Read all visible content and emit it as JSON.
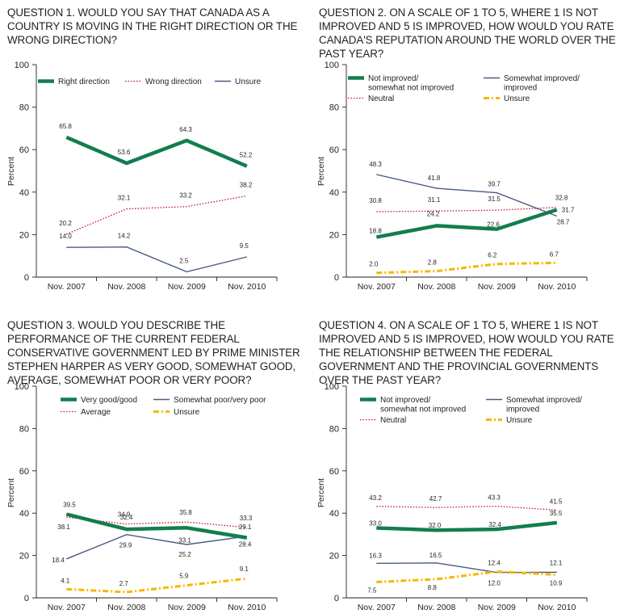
{
  "charts": [
    {
      "title": "QUESTION 1. WOULD YOU SAY THAT CANADA AS A COUNTRY IS MOVING IN THE RIGHT DIRECTION OR THE WRONG DIRECTION?"
    },
    {
      "title": "QUESTION 2. ON A SCALE OF 1 TO 5, WHERE 1 IS NOT IMPROVED AND 5 IS IMPROVED, HOW WOULD YOU RATE CANADA'S REPUTATION AROUND THE WORLD OVER THE PAST YEAR?"
    },
    {
      "title": "QUESTION 3. WOULD YOU DESCRIBE THE PERFORMANCE OF THE CURRENT FEDERAL CONSERVATIVE GOVERNMENT LED BY PRIME MINISTER STEPHEN HARPER AS VERY GOOD, SOMEWHAT GOOD, AVERAGE, SOMEWHAT POOR OR VERY POOR?"
    },
    {
      "title": "QUESTION 4. ON A SCALE OF 1 TO 5, WHERE 1 IS NOT IMPROVED AND 5 IS IMPROVED, HOW WOULD YOU RATE THE RELATIONSHIP BETWEEN THE FEDERAL GOVERNMENT AND THE PROVINCIAL GOVERNMENTS OVER THE PAST YEAR?"
    }
  ],
  "colors": {
    "green": "#127d4e",
    "red": "#c8102e",
    "navy": "#4a5a86",
    "yellow": "#f5b800",
    "axis": "#231f20"
  },
  "chart_data": [
    {
      "type": "line",
      "title": "QUESTION 1. WOULD YOU SAY THAT CANADA AS A COUNTRY IS MOVING IN THE RIGHT DIRECTION OR THE WRONG DIRECTION?",
      "ylabel": "Percent",
      "xlabel": "",
      "categories": [
        "Nov. 2007",
        "Nov. 2008",
        "Nov. 2009",
        "Nov. 2010"
      ],
      "ylim": [
        0,
        100
      ],
      "yticks": [
        0,
        20,
        40,
        60,
        80,
        100
      ],
      "legend": "top",
      "series": [
        {
          "name": "Right direction",
          "values": [
            65.8,
            53.6,
            64.3,
            52.2
          ],
          "color": "green",
          "style": "thick"
        },
        {
          "name": "Wrong direction",
          "values": [
            20.2,
            32.1,
            33.2,
            38.2
          ],
          "color": "red",
          "style": "dotted"
        },
        {
          "name": "Unsure",
          "values": [
            14.0,
            14.2,
            2.5,
            9.5
          ],
          "color": "navy",
          "style": "thin"
        }
      ]
    },
    {
      "type": "line",
      "title": "QUESTION 2. ON A SCALE OF 1 TO 5, WHERE 1 IS NOT IMPROVED AND 5 IS IMPROVED, HOW WOULD YOU RATE CANADA'S REPUTATION AROUND THE WORLD OVER THE PAST YEAR?",
      "ylabel": "Percent",
      "xlabel": "",
      "categories": [
        "Nov. 2007",
        "Nov. 2008",
        "Nov. 2009",
        "Nov. 2010"
      ],
      "ylim": [
        0,
        100
      ],
      "yticks": [
        0,
        20,
        40,
        60,
        80,
        100
      ],
      "legend": "top",
      "series": [
        {
          "name": "Not improved/ somewhat not improved",
          "values": [
            18.8,
            24.2,
            22.6,
            31.7
          ],
          "color": "green",
          "style": "thick"
        },
        {
          "name": "Somewhat improved/ improved",
          "values": [
            48.3,
            41.8,
            39.7,
            28.7
          ],
          "color": "navy",
          "style": "thin"
        },
        {
          "name": "Neutral",
          "values": [
            30.8,
            31.1,
            31.5,
            32.8
          ],
          "color": "red",
          "style": "dotted"
        },
        {
          "name": "Unsure",
          "values": [
            2.0,
            2.8,
            6.2,
            6.7
          ],
          "color": "yellow",
          "style": "dashdot"
        }
      ]
    },
    {
      "type": "line",
      "title": "QUESTION 3. WOULD YOU DESCRIBE THE PERFORMANCE OF THE CURRENT FEDERAL CONSERVATIVE GOVERNMENT LED BY PRIME MINISTER STEPHEN HARPER AS VERY GOOD, SOMEWHAT GOOD, AVERAGE, SOMEWHAT POOR OR VERY POOR?",
      "ylabel": "Percent",
      "xlabel": "",
      "categories": [
        "Nov. 2007",
        "Nov. 2008",
        "Nov. 2009",
        "Nov. 2010"
      ],
      "ylim": [
        0,
        100
      ],
      "yticks": [
        0,
        20,
        40,
        60,
        80,
        100
      ],
      "legend": "top",
      "series": [
        {
          "name": "Very good/good",
          "values": [
            39.5,
            32.4,
            33.1,
            28.4
          ],
          "color": "green",
          "style": "thick"
        },
        {
          "name": "Somewhat poor/very poor",
          "values": [
            18.4,
            29.9,
            25.2,
            29.1
          ],
          "color": "navy",
          "style": "thin"
        },
        {
          "name": "Average",
          "values": [
            38.1,
            34.9,
            35.8,
            33.3
          ],
          "color": "red",
          "style": "dotted"
        },
        {
          "name": "Unsure",
          "values": [
            4.1,
            2.7,
            5.9,
            9.1
          ],
          "color": "yellow",
          "style": "dashdot"
        }
      ]
    },
    {
      "type": "line",
      "title": "QUESTION 4. ON A SCALE OF 1 TO 5, WHERE 1 IS NOT IMPROVED AND 5 IS IMPROVED, HOW WOULD YOU RATE THE RELATIONSHIP BETWEEN THE FEDERAL GOVERNMENT AND THE PROVINCIAL GOVERNMENTS OVER THE PAST YEAR?",
      "ylabel": "Percent",
      "xlabel": "",
      "categories": [
        "Nov. 2007",
        "Nov. 2008",
        "Nov. 2009",
        "Nov. 2010"
      ],
      "ylim": [
        0,
        100
      ],
      "yticks": [
        0,
        20,
        40,
        60,
        80,
        100
      ],
      "legend": "top",
      "series": [
        {
          "name": "Not improved/ somewhat not improved",
          "values": [
            33.0,
            32.0,
            32.4,
            35.5
          ],
          "color": "green",
          "style": "thick"
        },
        {
          "name": "Somewhat improved/ improved",
          "values": [
            16.3,
            16.5,
            12.0,
            12.1
          ],
          "color": "navy",
          "style": "thin"
        },
        {
          "name": "Neutral",
          "values": [
            43.2,
            42.7,
            43.3,
            41.5
          ],
          "color": "red",
          "style": "dotted"
        },
        {
          "name": "Unsure",
          "values": [
            7.5,
            8.8,
            12.4,
            10.9
          ],
          "color": "yellow",
          "style": "dashdot"
        }
      ]
    }
  ]
}
